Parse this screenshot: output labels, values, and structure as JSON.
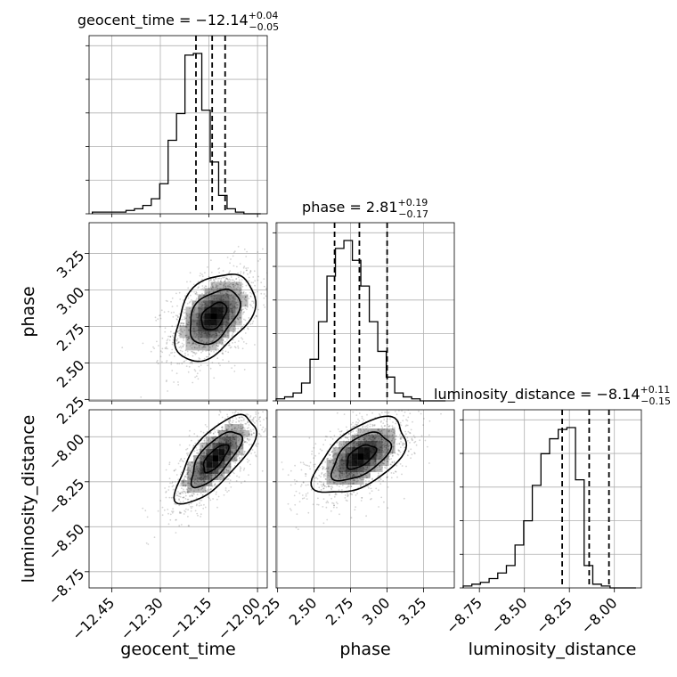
{
  "chart_data": {
    "type": "corner",
    "parameters": [
      "geocent_time",
      "phase",
      "luminosity_distance"
    ],
    "axis_labels": {
      "x": [
        "geocent_time",
        "phase",
        "luminosity_distance"
      ],
      "y": [
        "",
        "phase",
        "luminosity_distance"
      ]
    },
    "ticks": {
      "geocent_time": {
        "values": [
          -12.45,
          -12.3,
          -12.15,
          -12.0
        ],
        "labels": [
          "−12.45",
          "−12.30",
          "−12.15",
          "−12.00"
        ],
        "range": [
          -12.52,
          -11.97
        ]
      },
      "phase": {
        "values": [
          2.25,
          2.5,
          2.75,
          3.0,
          3.25
        ],
        "labels": [
          "2.25",
          "2.50",
          "2.75",
          "3.00",
          "3.25"
        ],
        "range": [
          2.24,
          3.46
        ]
      },
      "luminosity_distance": {
        "values": [
          -8.75,
          -8.5,
          -8.25,
          -8.0
        ],
        "labels": [
          "−8.75",
          "−8.50",
          "−8.25",
          "−8.00"
        ],
        "range": [
          -8.84,
          -7.85
        ]
      }
    },
    "titles": [
      {
        "name": "geocent_time",
        "median": "−12.14",
        "plus": "+0.04",
        "minus": "−0.05"
      },
      {
        "name": "phase",
        "median": "2.81",
        "plus": "+0.19",
        "minus": "−0.17"
      },
      {
        "name": "luminosity_distance",
        "median": "−8.14",
        "plus": "+0.11",
        "minus": "−0.15"
      }
    ],
    "quantiles": {
      "geocent_time": [
        -12.19,
        -12.14,
        -12.1
      ],
      "phase": [
        2.64,
        2.81,
        3.0
      ],
      "luminosity_distance": [
        -8.29,
        -8.14,
        -8.03
      ]
    },
    "histograms": {
      "geocent_time": {
        "edges_start": -12.51,
        "bin_width": 0.026,
        "counts": [
          1,
          1,
          1,
          1,
          2,
          3,
          5,
          9,
          18,
          44,
          60,
          95,
          96,
          62,
          31,
          11,
          3,
          1,
          0,
          0
        ]
      },
      "phase": {
        "edges_start": 2.24,
        "bin_width": 0.058,
        "counts": [
          1,
          2,
          4,
          9,
          21,
          40,
          63,
          77,
          81,
          71,
          58,
          40,
          25,
          12,
          4,
          2,
          1,
          0,
          0,
          0
        ]
      },
      "luminosity_distance": {
        "edges_start": -8.84,
        "bin_width": 0.048,
        "counts": [
          1,
          2,
          3,
          5,
          8,
          12,
          23,
          36,
          55,
          72,
          80,
          85,
          86,
          58,
          12,
          2,
          1,
          0,
          0,
          0
        ]
      }
    },
    "joint": [
      {
        "x": "geocent_time",
        "y": "phase",
        "center": [
          -12.135,
          2.82
        ],
        "spread": [
          0.07,
          0.17
        ],
        "rho": 0.42
      },
      {
        "x": "geocent_time",
        "y": "luminosity_distance",
        "center": [
          -12.13,
          -8.12
        ],
        "spread": [
          0.07,
          0.14
        ],
        "rho": 0.72
      },
      {
        "x": "phase",
        "y": "luminosity_distance",
        "center": [
          2.82,
          -8.11
        ],
        "spread": [
          0.18,
          0.12
        ],
        "rho": 0.55
      }
    ],
    "grid": true
  }
}
